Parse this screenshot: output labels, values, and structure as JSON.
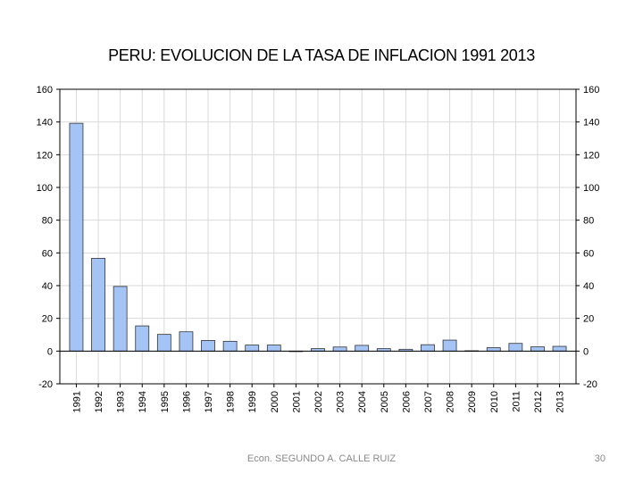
{
  "chart_data": {
    "type": "bar",
    "title": "PERU: EVOLUCION DE LA TASA DE INFLACION 1991 2013",
    "xlabel": "",
    "ylabel": "",
    "ylim": [
      -20,
      160
    ],
    "y_ticks": [
      -20,
      0,
      20,
      40,
      60,
      80,
      100,
      120,
      140,
      160
    ],
    "y_axes": "left-and-right",
    "grid": true,
    "legend": "none",
    "colors": {
      "bar_fill": "#a3c4f5",
      "bar_stroke": "#333333",
      "grid": "#d9d9d9"
    },
    "categories": [
      "1991",
      "1992",
      "1993",
      "1994",
      "1995",
      "1996",
      "1997",
      "1998",
      "1999",
      "2000",
      "2001",
      "2002",
      "2003",
      "2004",
      "2005",
      "2006",
      "2007",
      "2008",
      "2009",
      "2010",
      "2011",
      "2012",
      "2013"
    ],
    "values": [
      139.2,
      56.7,
      39.5,
      15.4,
      10.2,
      11.8,
      6.5,
      6.0,
      3.7,
      3.7,
      -0.1,
      1.5,
      2.5,
      3.5,
      1.5,
      1.1,
      3.9,
      6.7,
      0.2,
      2.1,
      4.7,
      2.6,
      2.9
    ]
  },
  "footer": {
    "author": "Econ. SEGUNDO A. CALLE RUIZ",
    "page": "30"
  }
}
